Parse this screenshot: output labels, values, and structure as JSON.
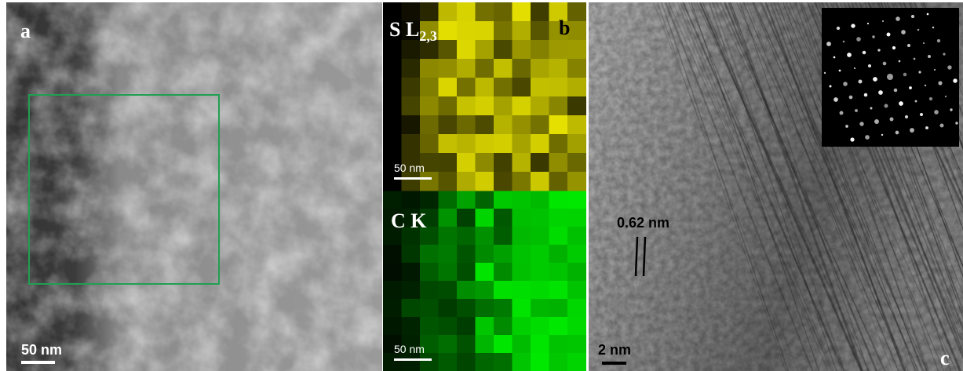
{
  "panel_a": {
    "label": "a",
    "scale_bar": "50 nm"
  },
  "panel_b": {
    "label": "b",
    "sulfur_map": {
      "element": "S L",
      "edge": "2,3",
      "scale_bar": "50 nm"
    },
    "carbon_map": {
      "element": "C K",
      "scale_bar": "50 nm"
    }
  },
  "panel_c": {
    "label": "c",
    "lattice_spacing": "0.62 nm",
    "scale_bar": "2 nm"
  }
}
